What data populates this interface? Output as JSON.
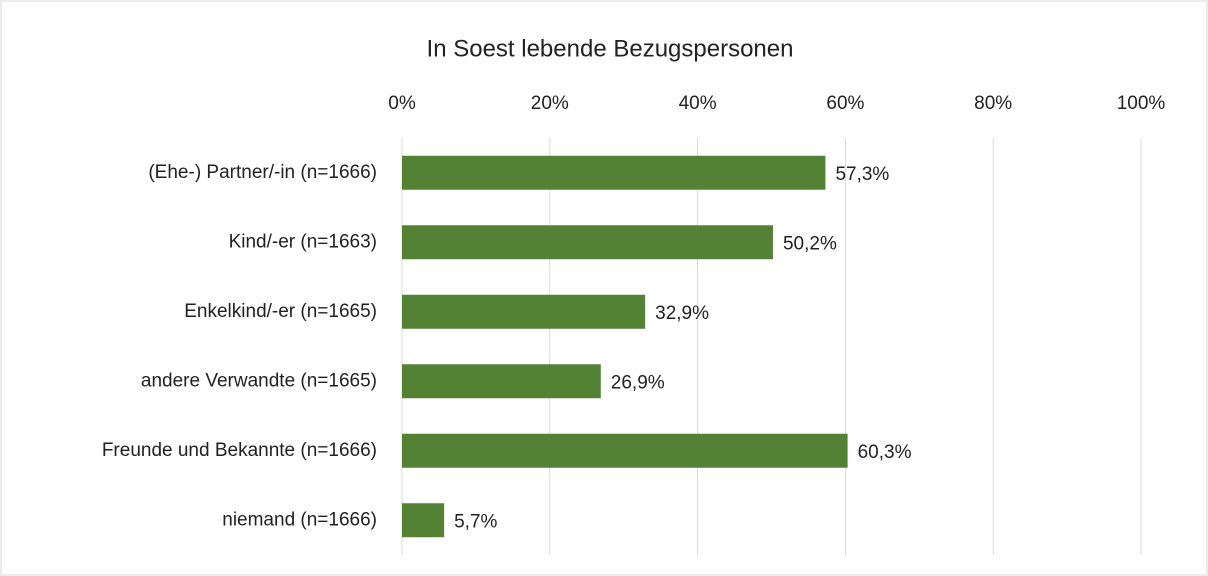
{
  "chart_data": {
    "type": "bar",
    "orientation": "horizontal",
    "title": "In Soest lebende Bezugspersonen",
    "categories": [
      "(Ehe-) Partner/-in (n=1666)",
      "Kind/-er (n=1663)",
      "Enkelkind/-er (n=1665)",
      "andere Verwandte (n=1665)",
      "Freunde und Bekannte (n=1666)",
      "niemand (n=1666)"
    ],
    "values": [
      57.3,
      50.2,
      32.9,
      26.9,
      60.3,
      5.7
    ],
    "value_labels": [
      "57,3%",
      "50,2%",
      "32,9%",
      "26,9%",
      "60,3%",
      "5,7%"
    ],
    "color": "#548235",
    "xlim": [
      0,
      100
    ],
    "xticks": [
      {
        "value": 0,
        "label": "0%"
      },
      {
        "value": 20,
        "label": "20%"
      },
      {
        "value": 40,
        "label": "40%"
      },
      {
        "value": 60,
        "label": "60%"
      },
      {
        "value": 80,
        "label": "80%"
      },
      {
        "value": 100,
        "label": "100%"
      }
    ],
    "grid": true
  }
}
